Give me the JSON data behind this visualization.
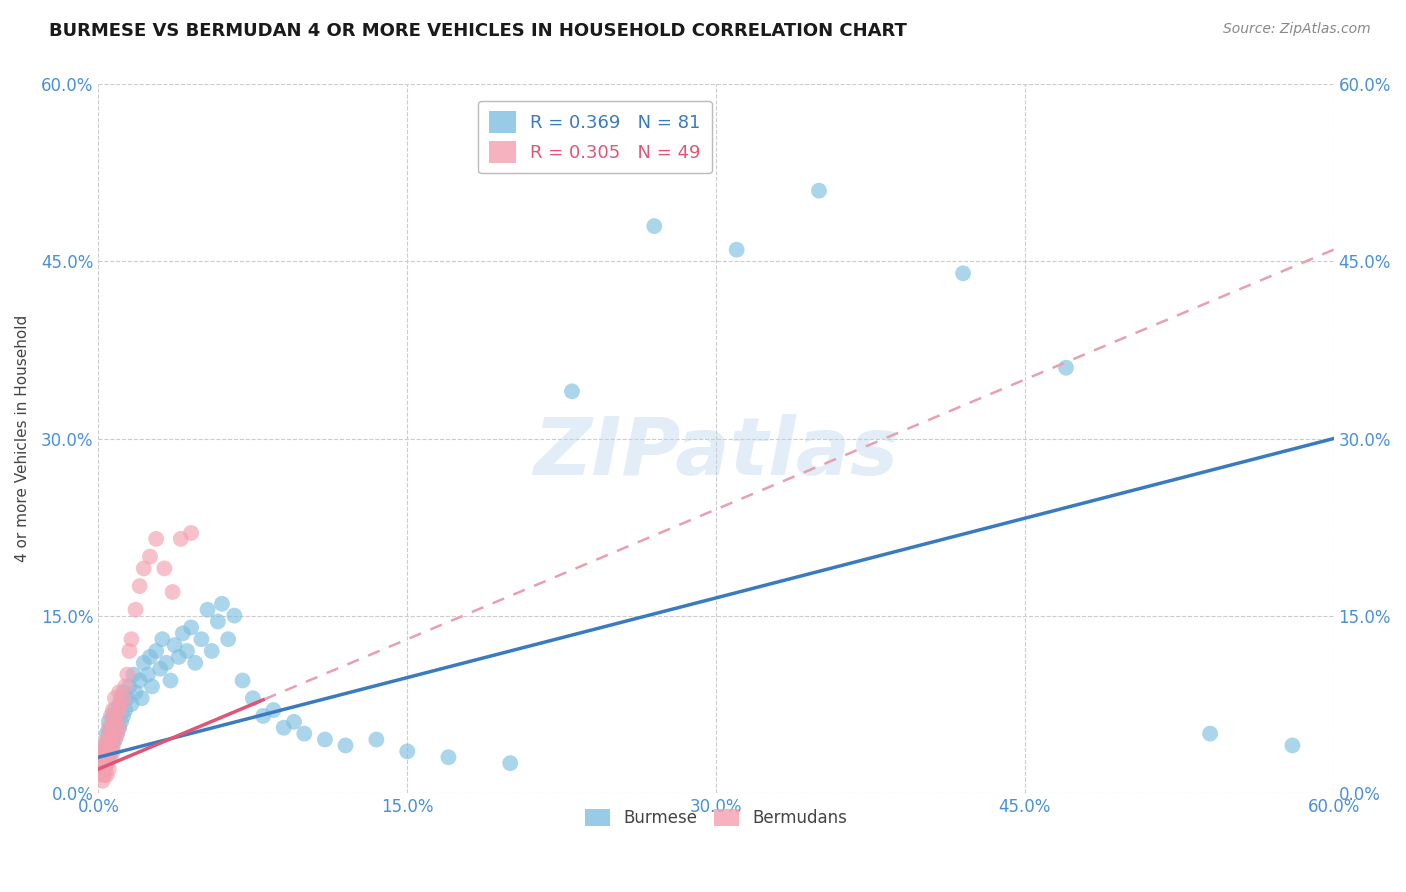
{
  "title": "BURMESE VS BERMUDAN 4 OR MORE VEHICLES IN HOUSEHOLD CORRELATION CHART",
  "source": "Source: ZipAtlas.com",
  "ylabel": "4 or more Vehicles in Household",
  "xmin": 0.0,
  "xmax": 0.6,
  "ymin": 0.0,
  "ymax": 0.6,
  "yticks": [
    0.0,
    0.15,
    0.3,
    0.45,
    0.6
  ],
  "xticks": [
    0.0,
    0.15,
    0.3,
    0.45,
    0.6
  ],
  "xtick_labels": [
    "0.0%",
    "15.0%",
    "30.0%",
    "45.0%",
    "60.0%"
  ],
  "ytick_labels": [
    "0.0%",
    "15.0%",
    "30.0%",
    "45.0%",
    "60.0%"
  ],
  "burmese_color": "#7fbfdf",
  "bermudans_color": "#f4a0b0",
  "burmese_R": 0.369,
  "burmese_N": 81,
  "bermudans_R": 0.305,
  "bermudans_N": 49,
  "burmese_line_color": "#3a7bbf",
  "bermudans_line_color": "#e05575",
  "bermudans_dash_color": "#e8a0b0",
  "watermark": "ZIPatlas",
  "background_color": "#ffffff",
  "grid_color": "#cccccc",
  "tick_color": "#4a90d9",
  "burmese_x": [
    0.001,
    0.002,
    0.002,
    0.003,
    0.003,
    0.003,
    0.004,
    0.004,
    0.004,
    0.005,
    0.005,
    0.005,
    0.005,
    0.006,
    0.006,
    0.006,
    0.007,
    0.007,
    0.007,
    0.008,
    0.008,
    0.008,
    0.009,
    0.009,
    0.01,
    0.01,
    0.011,
    0.011,
    0.012,
    0.012,
    0.013,
    0.014,
    0.015,
    0.016,
    0.017,
    0.018,
    0.02,
    0.021,
    0.022,
    0.024,
    0.025,
    0.026,
    0.028,
    0.03,
    0.031,
    0.033,
    0.035,
    0.037,
    0.039,
    0.041,
    0.043,
    0.045,
    0.047,
    0.05,
    0.053,
    0.055,
    0.058,
    0.06,
    0.063,
    0.066,
    0.07,
    0.075,
    0.08,
    0.085,
    0.09,
    0.095,
    0.1,
    0.11,
    0.12,
    0.135,
    0.15,
    0.17,
    0.2,
    0.23,
    0.27,
    0.31,
    0.35,
    0.42,
    0.47,
    0.54,
    0.58
  ],
  "burmese_y": [
    0.03,
    0.025,
    0.035,
    0.02,
    0.03,
    0.04,
    0.025,
    0.035,
    0.05,
    0.03,
    0.04,
    0.05,
    0.06,
    0.035,
    0.045,
    0.055,
    0.04,
    0.05,
    0.065,
    0.045,
    0.055,
    0.07,
    0.05,
    0.065,
    0.055,
    0.075,
    0.06,
    0.08,
    0.065,
    0.085,
    0.07,
    0.08,
    0.09,
    0.075,
    0.1,
    0.085,
    0.095,
    0.08,
    0.11,
    0.1,
    0.115,
    0.09,
    0.12,
    0.105,
    0.13,
    0.11,
    0.095,
    0.125,
    0.115,
    0.135,
    0.12,
    0.14,
    0.11,
    0.13,
    0.155,
    0.12,
    0.145,
    0.16,
    0.13,
    0.15,
    0.095,
    0.08,
    0.065,
    0.07,
    0.055,
    0.06,
    0.05,
    0.045,
    0.04,
    0.045,
    0.035,
    0.03,
    0.025,
    0.34,
    0.48,
    0.46,
    0.51,
    0.44,
    0.36,
    0.05,
    0.04
  ],
  "bermudans_x": [
    0.001,
    0.001,
    0.002,
    0.002,
    0.002,
    0.002,
    0.003,
    0.003,
    0.003,
    0.003,
    0.003,
    0.004,
    0.004,
    0.004,
    0.004,
    0.005,
    0.005,
    0.005,
    0.005,
    0.006,
    0.006,
    0.006,
    0.006,
    0.007,
    0.007,
    0.007,
    0.008,
    0.008,
    0.008,
    0.009,
    0.009,
    0.01,
    0.01,
    0.01,
    0.011,
    0.012,
    0.013,
    0.014,
    0.015,
    0.016,
    0.018,
    0.02,
    0.022,
    0.025,
    0.028,
    0.032,
    0.036,
    0.04,
    0.045
  ],
  "bermudans_y": [
    0.015,
    0.025,
    0.02,
    0.03,
    0.01,
    0.035,
    0.015,
    0.025,
    0.035,
    0.02,
    0.04,
    0.025,
    0.03,
    0.045,
    0.015,
    0.035,
    0.045,
    0.02,
    0.055,
    0.03,
    0.04,
    0.05,
    0.065,
    0.035,
    0.055,
    0.07,
    0.045,
    0.06,
    0.08,
    0.05,
    0.065,
    0.055,
    0.07,
    0.085,
    0.075,
    0.08,
    0.09,
    0.1,
    0.12,
    0.13,
    0.155,
    0.175,
    0.19,
    0.2,
    0.215,
    0.19,
    0.17,
    0.215,
    0.22
  ],
  "burmese_line_x0": 0.0,
  "burmese_line_x1": 0.6,
  "burmese_line_y0": 0.03,
  "burmese_line_y1": 0.3,
  "bermudans_line_x0": 0.0,
  "bermudans_line_x1": 0.6,
  "bermudans_line_y0": 0.02,
  "bermudans_line_y1": 0.46
}
